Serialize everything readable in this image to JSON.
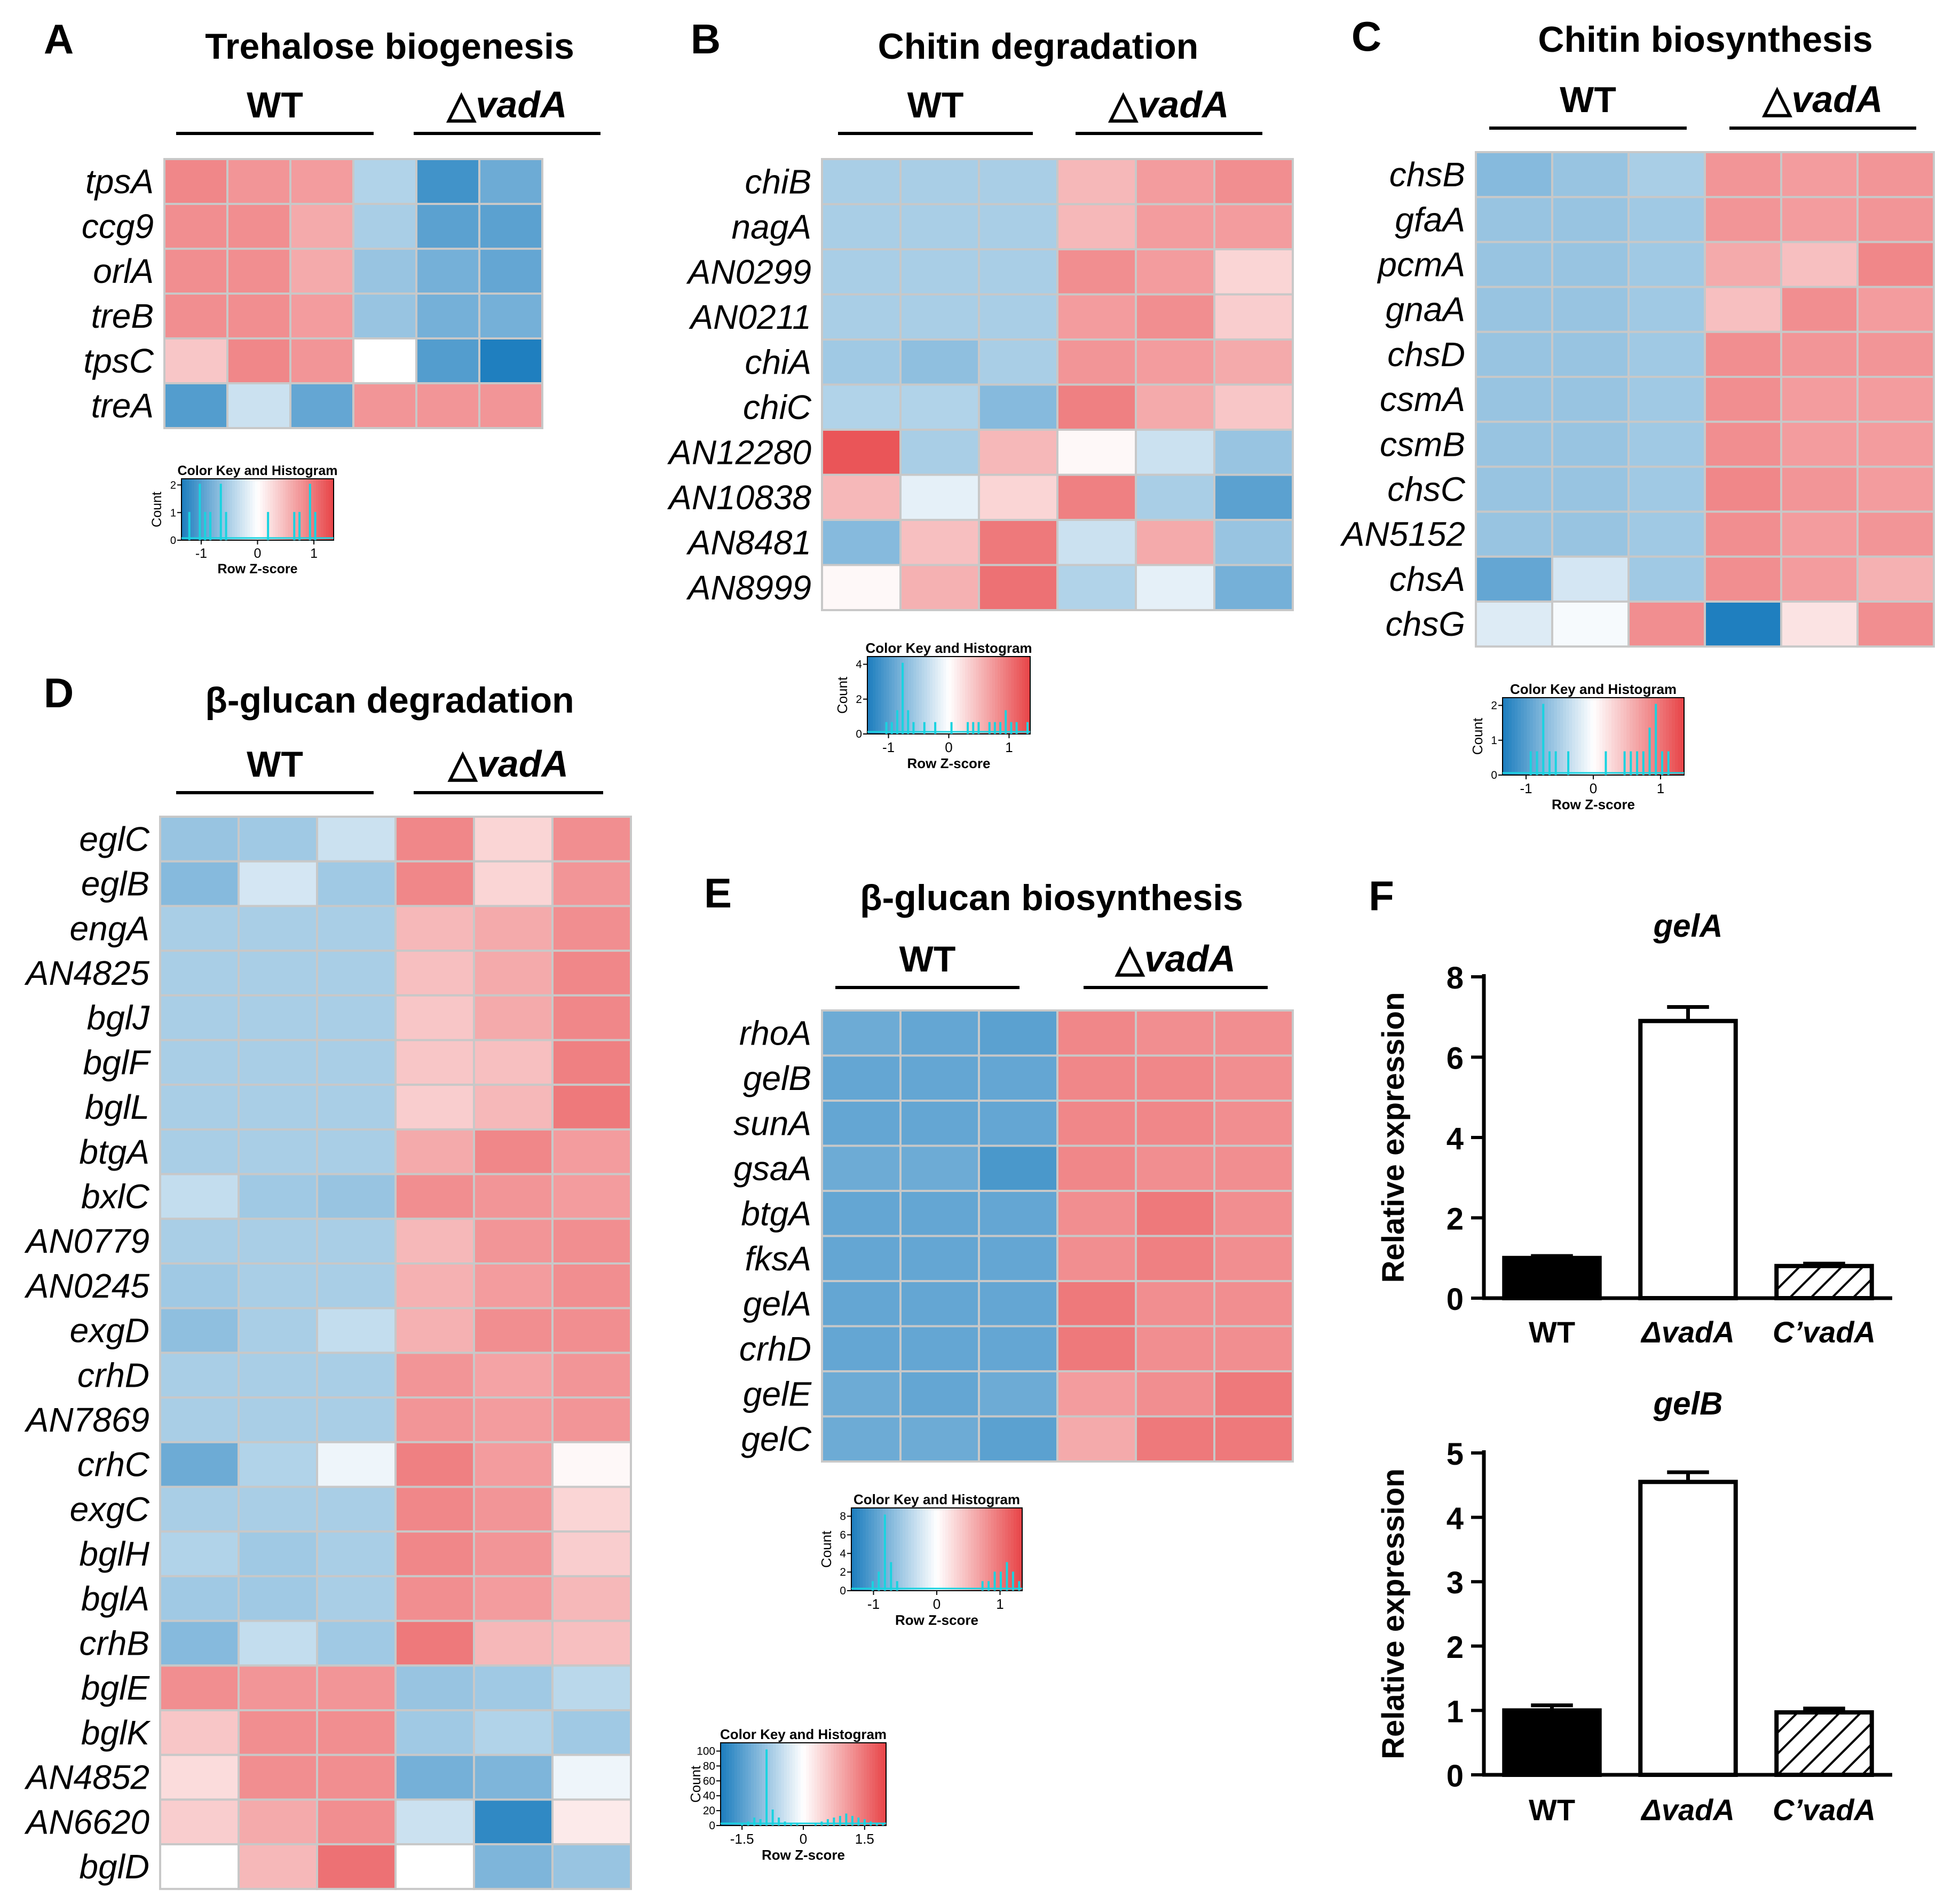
{
  "figure": {
    "wt_label": "WT",
    "mut_prefix": "△",
    "mut_label": "vadA",
    "colorkey_title": "Color Key and Histogram",
    "colorkey_xlabel": "Row Z-score",
    "colorkey_ylabel": "Count"
  },
  "colors": {
    "low": "#1f7fbf",
    "mid": "#ffffff",
    "high": "#e8474a",
    "histogram": "#19d3e0",
    "grid": "#c8c8c8"
  },
  "chart_data": [
    {
      "id": "A",
      "type": "heatmap",
      "panel_letter": "A",
      "title": "Trehalose biogenesis",
      "columns": [
        "WT",
        "WT",
        "WT",
        "△vadA",
        "△vadA",
        "△vadA"
      ],
      "rows": [
        "tpsA",
        "ccg9",
        "orlA",
        "treB",
        "tpsC",
        "treA"
      ],
      "z": [
        [
          0.85,
          0.75,
          0.7,
          -0.45,
          -1.1,
          -0.85
        ],
        [
          0.8,
          0.8,
          0.6,
          -0.5,
          -0.95,
          -0.95
        ],
        [
          0.8,
          0.8,
          0.6,
          -0.6,
          -0.8,
          -0.9
        ],
        [
          0.8,
          0.8,
          0.7,
          -0.6,
          -0.8,
          -0.8
        ],
        [
          0.4,
          0.85,
          0.75,
          0.0,
          -1.0,
          -1.3
        ],
        [
          -1.0,
          -0.3,
          -0.9,
          0.75,
          0.75,
          0.75
        ]
      ],
      "color_key": {
        "ticks": [
          -1,
          0,
          1
        ],
        "yticks": [
          0,
          1,
          2
        ],
        "histogram": [
          0,
          1,
          0,
          2,
          1,
          1,
          0,
          2,
          1,
          0,
          0,
          0,
          0,
          0,
          0,
          0,
          1,
          0,
          0,
          0,
          0,
          1,
          1,
          0,
          2,
          1,
          0,
          0,
          0
        ]
      }
    },
    {
      "id": "B",
      "type": "heatmap",
      "panel_letter": "B",
      "title": "Chitin degradation",
      "columns": [
        "WT",
        "WT",
        "WT",
        "△vadA",
        "△vadA",
        "△vadA"
      ],
      "rows": [
        "chiB",
        "nagA",
        "AN0299",
        "AN0211",
        "chiA",
        "chiC",
        "AN12280",
        "AN10838",
        "AN8481",
        "AN8999"
      ],
      "z": [
        [
          -0.5,
          -0.5,
          -0.5,
          0.5,
          0.7,
          0.8
        ],
        [
          -0.5,
          -0.5,
          -0.5,
          0.5,
          0.7,
          0.7
        ],
        [
          -0.5,
          -0.5,
          -0.5,
          0.8,
          0.7,
          0.3
        ],
        [
          -0.5,
          -0.5,
          -0.5,
          0.7,
          0.8,
          0.35
        ],
        [
          -0.55,
          -0.65,
          -0.5,
          0.75,
          0.7,
          0.6
        ],
        [
          -0.45,
          -0.45,
          -0.7,
          0.9,
          0.6,
          0.4
        ],
        [
          1.2,
          -0.5,
          0.5,
          0.05,
          -0.3,
          -0.6
        ],
        [
          0.5,
          -0.15,
          0.3,
          0.9,
          -0.5,
          -0.95
        ],
        [
          -0.7,
          0.45,
          0.95,
          -0.3,
          0.6,
          -0.6
        ],
        [
          0.05,
          0.55,
          1.0,
          -0.45,
          -0.15,
          -0.8
        ]
      ],
      "color_key": {
        "ticks": [
          -1,
          0,
          1
        ],
        "yticks": [
          0,
          2,
          4
        ],
        "histogram": [
          0,
          0,
          0,
          1,
          1,
          2,
          6,
          2,
          1,
          0,
          1,
          0,
          1,
          0,
          0,
          1,
          0,
          0,
          1,
          1,
          1,
          0,
          1,
          1,
          1,
          2,
          1,
          1,
          0,
          1
        ]
      }
    },
    {
      "id": "C",
      "type": "heatmap",
      "panel_letter": "C",
      "title": "Chitin biosynthesis",
      "columns": [
        "WT",
        "WT",
        "WT",
        "△vadA",
        "△vadA",
        "△vadA"
      ],
      "rows": [
        "chsB",
        "gfaA",
        "pcmA",
        "gnaA",
        "chsD",
        "csmA",
        "csmB",
        "chsC",
        "AN5152",
        "chsA",
        "chsG"
      ],
      "z": [
        [
          -0.7,
          -0.6,
          -0.5,
          0.75,
          0.7,
          0.75
        ],
        [
          -0.6,
          -0.6,
          -0.55,
          0.75,
          0.7,
          0.75
        ],
        [
          -0.6,
          -0.6,
          -0.55,
          0.6,
          0.45,
          0.85
        ],
        [
          -0.6,
          -0.6,
          -0.55,
          0.45,
          0.8,
          0.7
        ],
        [
          -0.6,
          -0.6,
          -0.55,
          0.8,
          0.75,
          0.75
        ],
        [
          -0.6,
          -0.6,
          -0.55,
          0.8,
          0.7,
          0.7
        ],
        [
          -0.6,
          -0.6,
          -0.55,
          0.8,
          0.7,
          0.7
        ],
        [
          -0.6,
          -0.6,
          -0.55,
          0.85,
          0.75,
          0.7
        ],
        [
          -0.6,
          -0.6,
          -0.55,
          0.8,
          0.7,
          0.75
        ],
        [
          -0.9,
          -0.25,
          -0.55,
          0.8,
          0.7,
          0.55
        ],
        [
          -0.2,
          -0.05,
          0.8,
          -1.3,
          0.2,
          0.8
        ]
      ],
      "color_key": {
        "ticks": [
          -1,
          0,
          1
        ],
        "yticks": [
          0,
          1,
          2
        ],
        "histogram": [
          0,
          0,
          0,
          0,
          1,
          1,
          3,
          1,
          1,
          0,
          1,
          0,
          0,
          0,
          0,
          0,
          1,
          0,
          0,
          1,
          1,
          1,
          1,
          2,
          3,
          1,
          1,
          0,
          0
        ]
      }
    },
    {
      "id": "D",
      "type": "heatmap",
      "panel_letter": "D",
      "title": "β-glucan degradation",
      "columns": [
        "WT",
        "WT",
        "WT",
        "△vadA",
        "△vadA",
        "△vadA"
      ],
      "rows": [
        "eglC",
        "eglB",
        "engA",
        "AN4825",
        "bglJ",
        "bglF",
        "bglL",
        "btgA",
        "bxlC",
        "AN0779",
        "AN0245",
        "exgD",
        "crhD",
        "AN7869",
        "crhC",
        "exgC",
        "bglH",
        "bglA",
        "crhB",
        "bglE",
        "bglK",
        "AN4852",
        "AN6620",
        "bglD"
      ],
      "z": [
        [
          -0.6,
          -0.55,
          -0.3,
          0.85,
          0.3,
          0.8
        ],
        [
          -0.7,
          -0.25,
          -0.55,
          0.85,
          0.3,
          0.75
        ],
        [
          -0.5,
          -0.5,
          -0.5,
          0.5,
          0.6,
          0.8
        ],
        [
          -0.5,
          -0.5,
          -0.5,
          0.45,
          0.6,
          0.85
        ],
        [
          -0.5,
          -0.5,
          -0.5,
          0.4,
          0.6,
          0.85
        ],
        [
          -0.5,
          -0.5,
          -0.5,
          0.4,
          0.45,
          0.9
        ],
        [
          -0.5,
          -0.5,
          -0.5,
          0.35,
          0.5,
          0.95
        ],
        [
          -0.5,
          -0.5,
          -0.5,
          0.6,
          0.85,
          0.7
        ],
        [
          -0.35,
          -0.55,
          -0.6,
          0.8,
          0.75,
          0.7
        ],
        [
          -0.5,
          -0.5,
          -0.5,
          0.5,
          0.75,
          0.8
        ],
        [
          -0.55,
          -0.5,
          -0.5,
          0.55,
          0.7,
          0.8
        ],
        [
          -0.65,
          -0.5,
          -0.35,
          0.55,
          0.8,
          0.8
        ],
        [
          -0.5,
          -0.5,
          -0.5,
          0.75,
          0.65,
          0.75
        ],
        [
          -0.5,
          -0.5,
          -0.5,
          0.75,
          0.7,
          0.75
        ],
        [
          -0.85,
          -0.45,
          -0.1,
          0.9,
          0.7,
          0.05
        ],
        [
          -0.5,
          -0.5,
          -0.5,
          0.85,
          0.75,
          0.3
        ],
        [
          -0.45,
          -0.55,
          -0.5,
          0.85,
          0.75,
          0.35
        ],
        [
          -0.55,
          -0.55,
          -0.5,
          0.8,
          0.7,
          0.5
        ],
        [
          -0.7,
          -0.35,
          -0.55,
          0.95,
          0.5,
          0.45
        ],
        [
          0.8,
          0.75,
          0.75,
          -0.6,
          -0.55,
          -0.4
        ],
        [
          0.4,
          0.8,
          0.8,
          -0.55,
          -0.45,
          -0.55
        ],
        [
          0.25,
          0.8,
          0.8,
          -0.8,
          -0.75,
          -0.1
        ],
        [
          0.35,
          0.6,
          0.8,
          -0.3,
          -1.2,
          0.15
        ],
        [
          0.0,
          0.5,
          1.0,
          0.0,
          -0.75,
          -0.6
        ]
      ],
      "color_key": {
        "ticks": [
          -1.5,
          0,
          1.5
        ],
        "yticks": [
          0,
          20,
          40,
          60,
          80,
          100
        ],
        "histogram": [
          0,
          0,
          0,
          2,
          5,
          10,
          8,
          95,
          20,
          10,
          5,
          2,
          2,
          0,
          0,
          2,
          5,
          8,
          10,
          12,
          15,
          12,
          10,
          8,
          5,
          3,
          2
        ]
      }
    },
    {
      "id": "E",
      "type": "heatmap",
      "panel_letter": "E",
      "title": "β-glucan biosynthesis",
      "columns": [
        "WT",
        "WT",
        "WT",
        "△vadA",
        "△vadA",
        "△vadA"
      ],
      "rows": [
        "rhoA",
        "gelB",
        "sunA",
        "gsaA",
        "btgA",
        "fksA",
        "gelA",
        "crhD",
        "gelE",
        "gelC"
      ],
      "z": [
        [
          -0.85,
          -0.9,
          -0.95,
          0.85,
          0.8,
          0.8
        ],
        [
          -0.9,
          -0.9,
          -0.9,
          0.85,
          0.85,
          0.8
        ],
        [
          -0.9,
          -0.9,
          -0.9,
          0.85,
          0.85,
          0.8
        ],
        [
          -0.85,
          -0.85,
          -1.05,
          0.85,
          0.8,
          0.8
        ],
        [
          -0.9,
          -0.9,
          -0.9,
          0.8,
          0.95,
          0.8
        ],
        [
          -0.9,
          -0.9,
          -0.9,
          0.8,
          0.9,
          0.8
        ],
        [
          -0.9,
          -0.9,
          -0.9,
          0.95,
          0.8,
          0.8
        ],
        [
          -0.9,
          -0.9,
          -0.9,
          0.95,
          0.8,
          0.8
        ],
        [
          -0.85,
          -0.9,
          -0.85,
          0.7,
          0.8,
          0.95
        ],
        [
          -0.85,
          -0.85,
          -0.95,
          0.6,
          0.95,
          0.95
        ]
      ],
      "color_key": {
        "ticks": [
          -1,
          0,
          1
        ],
        "yticks": [
          0,
          2,
          4,
          6,
          8
        ],
        "histogram": [
          0,
          0,
          0,
          1,
          2,
          8,
          3,
          1,
          0,
          0,
          0,
          0,
          0,
          0,
          0,
          0,
          0,
          0,
          0,
          0,
          0,
          1,
          1,
          2,
          2,
          3,
          2,
          1
        ]
      }
    },
    {
      "id": "F1",
      "type": "bar",
      "panel_letter": "F",
      "title": "gelA",
      "ylabel": "Relative expression",
      "categories": [
        "WT",
        "ΔvadA",
        "C’vadA"
      ],
      "values": [
        1.0,
        6.9,
        0.8
      ],
      "errors": [
        0.05,
        0.35,
        0.06
      ],
      "ylim": [
        0,
        8
      ],
      "yticks": [
        0,
        2,
        4,
        6,
        8
      ],
      "fills": [
        "solid",
        "open",
        "hatched"
      ]
    },
    {
      "id": "F2",
      "type": "bar",
      "panel_letter": "",
      "title": "gelB",
      "ylabel": "Relative expression",
      "categories": [
        "WT",
        "ΔvadA",
        "C’vadA"
      ],
      "values": [
        1.0,
        4.55,
        0.97
      ],
      "errors": [
        0.08,
        0.15,
        0.06
      ],
      "ylim": [
        0,
        5
      ],
      "yticks": [
        0,
        1,
        2,
        3,
        4,
        5
      ],
      "fills": [
        "solid",
        "open",
        "hatched"
      ]
    }
  ]
}
